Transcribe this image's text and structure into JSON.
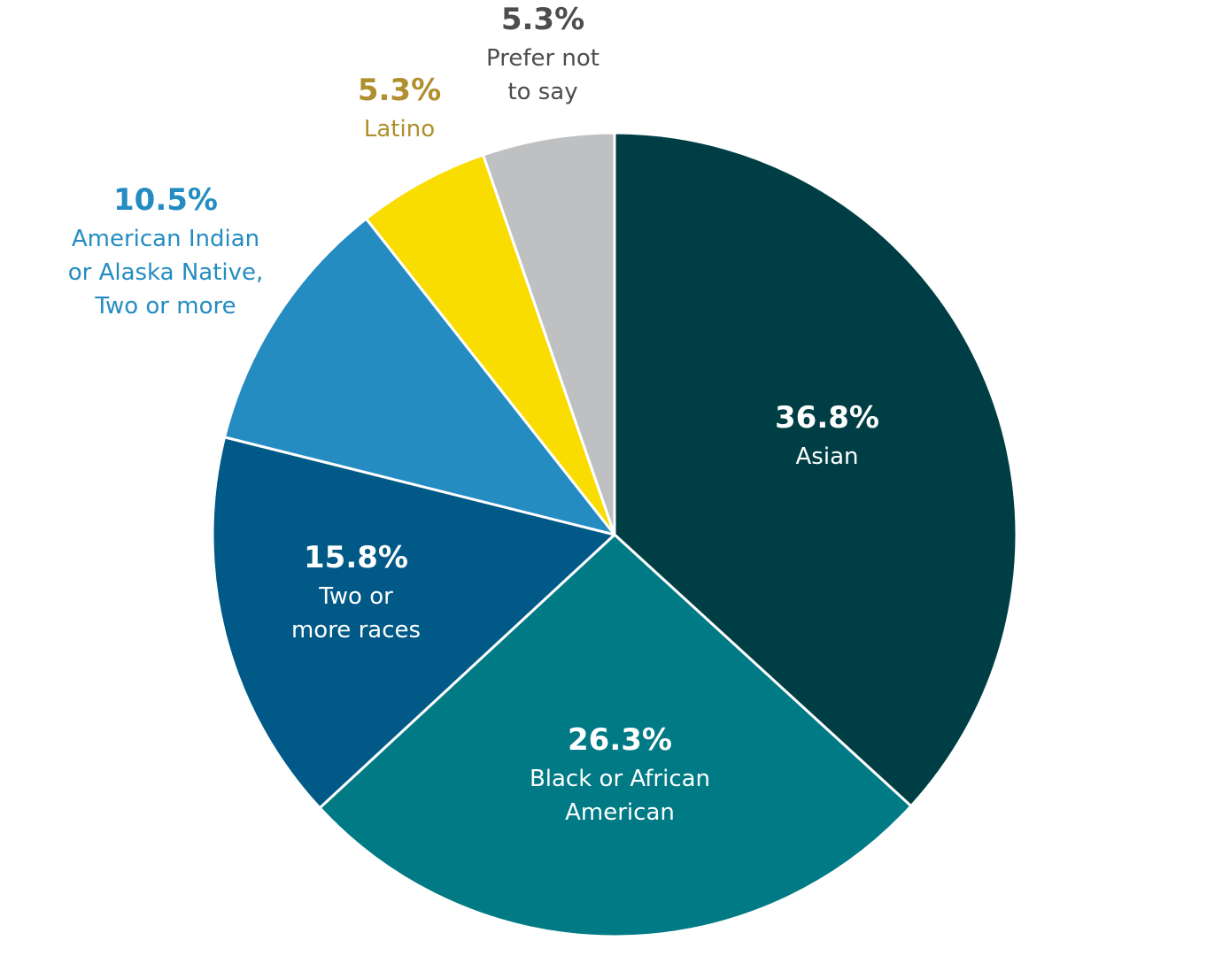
{
  "chart_data": {
    "type": "pie",
    "title": "",
    "start": "12 o'clock",
    "direction": "clockwise",
    "slices": [
      {
        "value": 36.8,
        "pct_label": "36.8%",
        "label_lines": [
          "Asian"
        ],
        "color": "#003e45",
        "label_color": "#ffffff",
        "label_position": "inside"
      },
      {
        "value": 26.3,
        "pct_label": "26.3%",
        "label_lines": [
          "Black or African",
          "American"
        ],
        "color": "#007a85",
        "label_color": "#ffffff",
        "label_position": "inside"
      },
      {
        "value": 15.8,
        "pct_label": "15.8%",
        "label_lines": [
          "Two or",
          "more races"
        ],
        "color": "#005987",
        "label_color": "#ffffff",
        "label_position": "inside"
      },
      {
        "value": 10.5,
        "pct_label": "10.5%",
        "label_lines": [
          "American Indian",
          "or Alaska Native,",
          "Two or more"
        ],
        "color": "#258cc2",
        "label_color": "#258cc2",
        "label_position": "outside"
      },
      {
        "value": 5.3,
        "pct_label": "5.3%",
        "label_lines": [
          "Latino"
        ],
        "color": "#f9dd00",
        "label_color": "#b08f2e",
        "label_position": "outside"
      },
      {
        "value": 5.3,
        "pct_label": "5.3%",
        "label_lines": [
          "Prefer not",
          "to say"
        ],
        "color": "#bfc0c2",
        "label_color": "#4d4d4d",
        "label_position": "outside"
      }
    ]
  }
}
